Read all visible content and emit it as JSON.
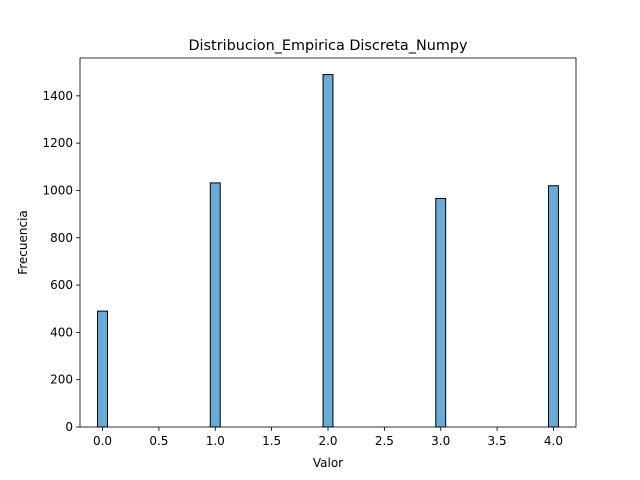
{
  "chart_data": {
    "type": "bar",
    "title": "Distribucion_Empirica Discreta_Numpy",
    "xlabel": "Valor",
    "ylabel": "Frecuencia",
    "x": [
      0,
      1,
      2,
      3,
      4
    ],
    "values": [
      490,
      1032,
      1490,
      966,
      1020
    ],
    "xlim": [
      -0.2,
      4.2
    ],
    "ylim": [
      0,
      1560
    ],
    "xticks": [
      0.0,
      0.5,
      1.0,
      1.5,
      2.0,
      2.5,
      3.0,
      3.5,
      4.0
    ],
    "xtick_labels": [
      "0.0",
      "0.5",
      "1.0",
      "1.5",
      "2.0",
      "2.5",
      "3.0",
      "3.5",
      "4.0"
    ],
    "yticks": [
      0,
      200,
      400,
      600,
      800,
      1000,
      1200,
      1400
    ],
    "ytick_labels": [
      "0",
      "200",
      "400",
      "600",
      "800",
      "1000",
      "1200",
      "1400"
    ],
    "bar_color": "#6aaad6",
    "edge_color": "#000000",
    "grid": false,
    "legend": null
  }
}
